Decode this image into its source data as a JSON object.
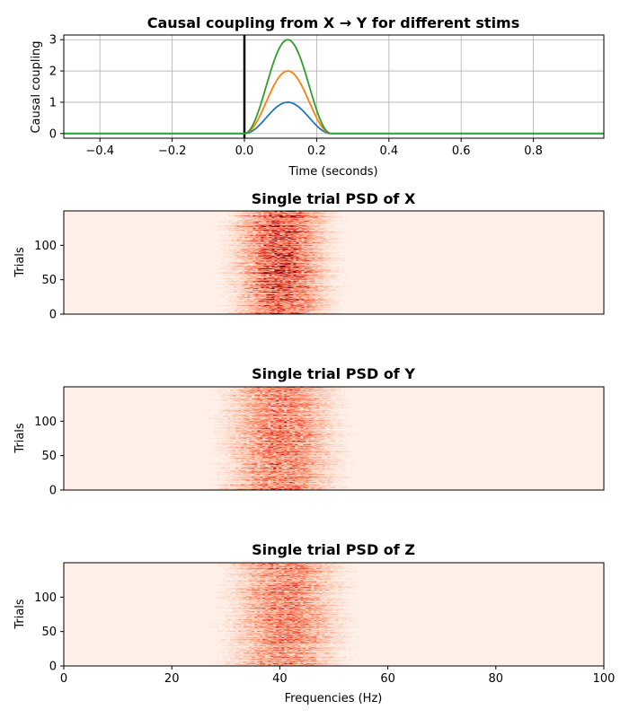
{
  "chart_data": [
    {
      "type": "line",
      "title": "Causal coupling from X → Y for different stims",
      "xlabel": "Time (seconds)",
      "ylabel": "Causal coupling",
      "xlim": [
        -0.5,
        0.995
      ],
      "ylim": [
        -0.15,
        3.15
      ],
      "xticks": [
        -0.4,
        -0.2,
        0.0,
        0.2,
        0.4,
        0.6,
        0.8
      ],
      "xtick_labels": [
        "−0.4",
        "−0.2",
        "0.0",
        "0.2",
        "0.4",
        "0.6",
        "0.8"
      ],
      "yticks": [
        0,
        1,
        2,
        3
      ],
      "ytick_labels": [
        "0",
        "1",
        "2",
        "3"
      ],
      "grid": true,
      "vline_x": 0.0,
      "pulse": {
        "start": 0.0,
        "end": 0.24
      },
      "series": [
        {
          "amplitude": 1,
          "color": "#1f77b4"
        },
        {
          "amplitude": 2,
          "color": "#ff7f0e"
        },
        {
          "amplitude": 3,
          "color": "#2ca02c"
        }
      ]
    },
    {
      "type": "heatmap",
      "title": "Single trial PSD of X",
      "ylabel": "Trials",
      "xlim": [
        0,
        100
      ],
      "ylim": [
        0,
        150
      ],
      "yticks": [
        0,
        50,
        100
      ],
      "ytick_labels": [
        "0",
        "50",
        "100"
      ],
      "colormap": "Reds",
      "peak_hz": 40,
      "peak_width_hz": 5,
      "n_trials": 150
    },
    {
      "type": "heatmap",
      "title": "Single trial PSD of Y",
      "ylabel": "Trials",
      "xlim": [
        0,
        100
      ],
      "ylim": [
        0,
        150
      ],
      "yticks": [
        0,
        50,
        100
      ],
      "ytick_labels": [
        "0",
        "50",
        "100"
      ],
      "colormap": "Reds",
      "peak_hz": 40,
      "peak_width_hz": 6,
      "n_trials": 150
    },
    {
      "type": "heatmap",
      "title": "Single trial PSD of Z",
      "ylabel": "Trials",
      "xlabel": "Frequencies (Hz)",
      "xlim": [
        0,
        100
      ],
      "ylim": [
        0,
        150
      ],
      "xticks": [
        0,
        20,
        40,
        60,
        80,
        100
      ],
      "xtick_labels": [
        "0",
        "20",
        "40",
        "60",
        "80",
        "100"
      ],
      "yticks": [
        0,
        50,
        100
      ],
      "ytick_labels": [
        "0",
        "50",
        "100"
      ],
      "colormap": "Reds",
      "peak_hz": 41,
      "peak_width_hz": 6,
      "n_trials": 150
    }
  ]
}
